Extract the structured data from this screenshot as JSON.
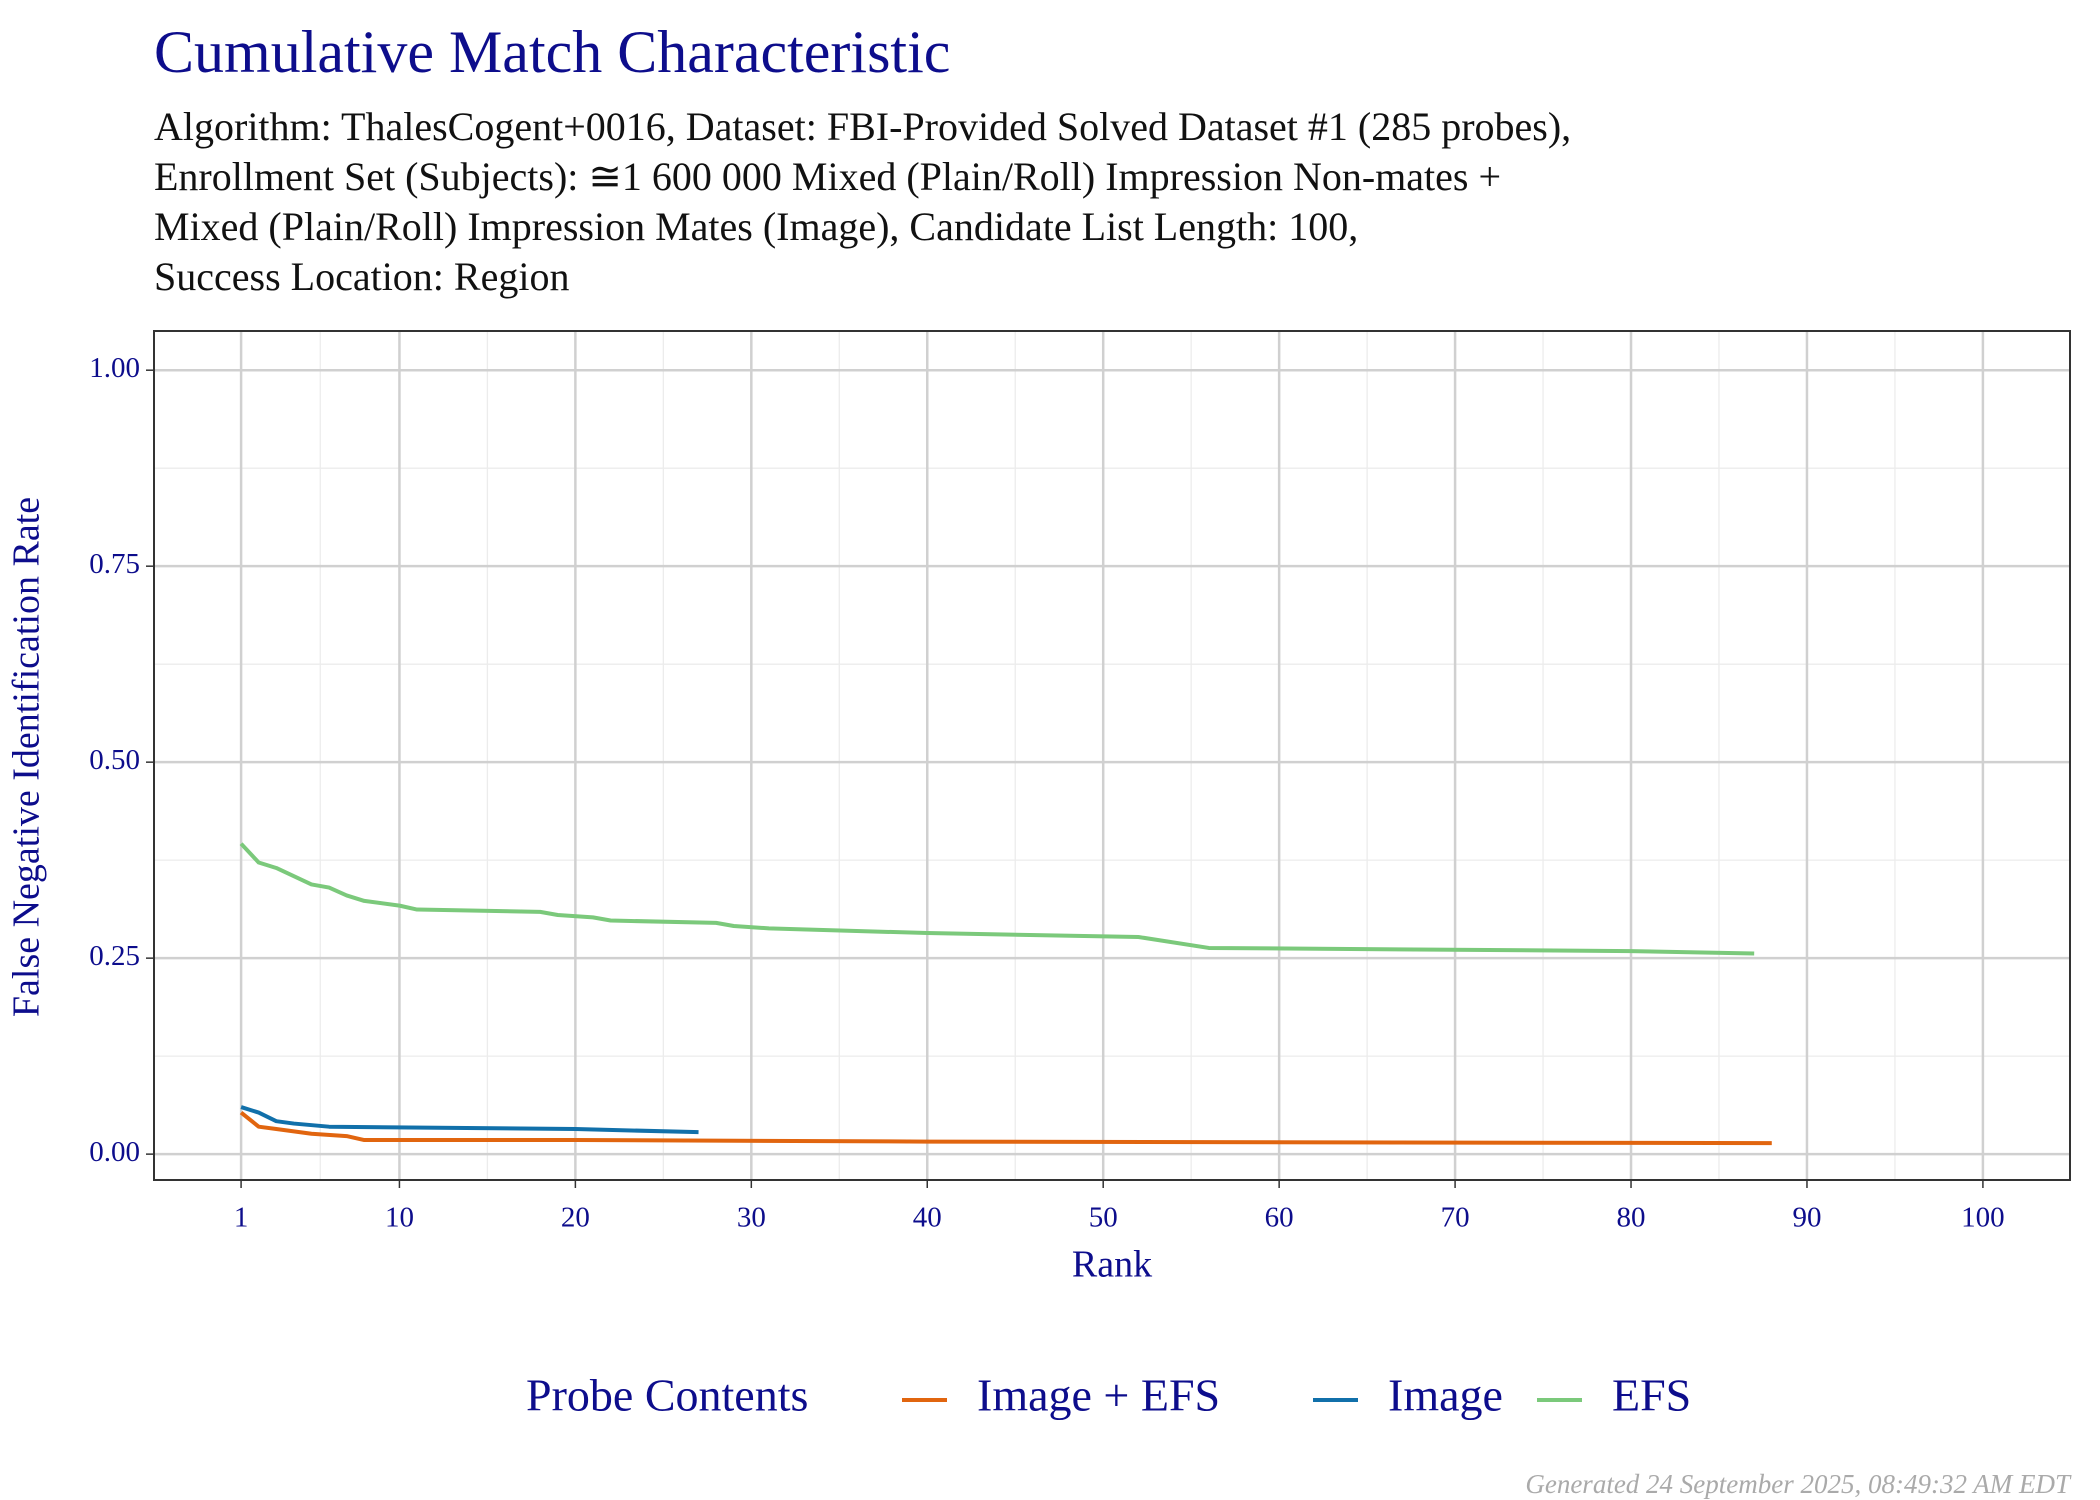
{
  "chart_data": {
    "type": "line",
    "title": "Cumulative Match Characteristic",
    "subtitle": [
      "Algorithm: ThalesCogent+0016, Dataset: FBI-Provided Solved Dataset #1 (285 probes),",
      "Enrollment Set (Subjects): ≅1 600 000 Mixed (Plain/Roll) Impression Non-mates +",
      "Mixed (Plain/Roll) Impression Mates (Image), Candidate List Length: 100,",
      "Success Location: Region"
    ],
    "x_label": "Rank",
    "y_label": "False Negative Identification Rate",
    "legend_title": "Probe Contents",
    "footer": "Generated 24 September 2025, 08:49:32 AM EDT",
    "xlim": [
      -3.95,
      104.95
    ],
    "ylim": [
      -0.033,
      1.05
    ],
    "xticks": [
      1,
      10,
      20,
      30,
      40,
      50,
      60,
      70,
      80,
      90,
      100
    ],
    "yticks": [
      {
        "value": 0,
        "label": "0.00"
      },
      {
        "value": 0.25,
        "label": "0.25"
      },
      {
        "value": 0.5,
        "label": "0.50"
      },
      {
        "value": 0.75,
        "label": "0.75"
      },
      {
        "value": 1,
        "label": "1.00"
      }
    ],
    "grid": true,
    "legend_position": "bottom",
    "series": [
      {
        "name": "Image + EFS",
        "color": "#e1650f",
        "x": [
          1,
          2,
          3,
          5,
          7,
          8,
          20,
          40,
          88
        ],
        "values": [
          0.053,
          0.035,
          0.032,
          0.026,
          0.023,
          0.018,
          0.018,
          0.016,
          0.014
        ]
      },
      {
        "name": "Image",
        "color": "#1170aa",
        "x": [
          1,
          2,
          3,
          4,
          6,
          20,
          27
        ],
        "values": [
          0.06,
          0.053,
          0.042,
          0.039,
          0.035,
          0.032,
          0.028
        ]
      },
      {
        "name": "EFS",
        "color": "#7bc97b",
        "x": [
          1,
          2,
          3,
          5,
          6,
          7,
          8,
          10,
          11,
          18,
          19,
          21,
          22,
          28,
          29,
          31,
          40,
          52,
          56,
          80,
          87
        ],
        "values": [
          0.396,
          0.372,
          0.365,
          0.344,
          0.34,
          0.33,
          0.323,
          0.317,
          0.312,
          0.309,
          0.305,
          0.302,
          0.298,
          0.295,
          0.291,
          0.288,
          0.282,
          0.277,
          0.263,
          0.259,
          0.256
        ]
      }
    ]
  }
}
